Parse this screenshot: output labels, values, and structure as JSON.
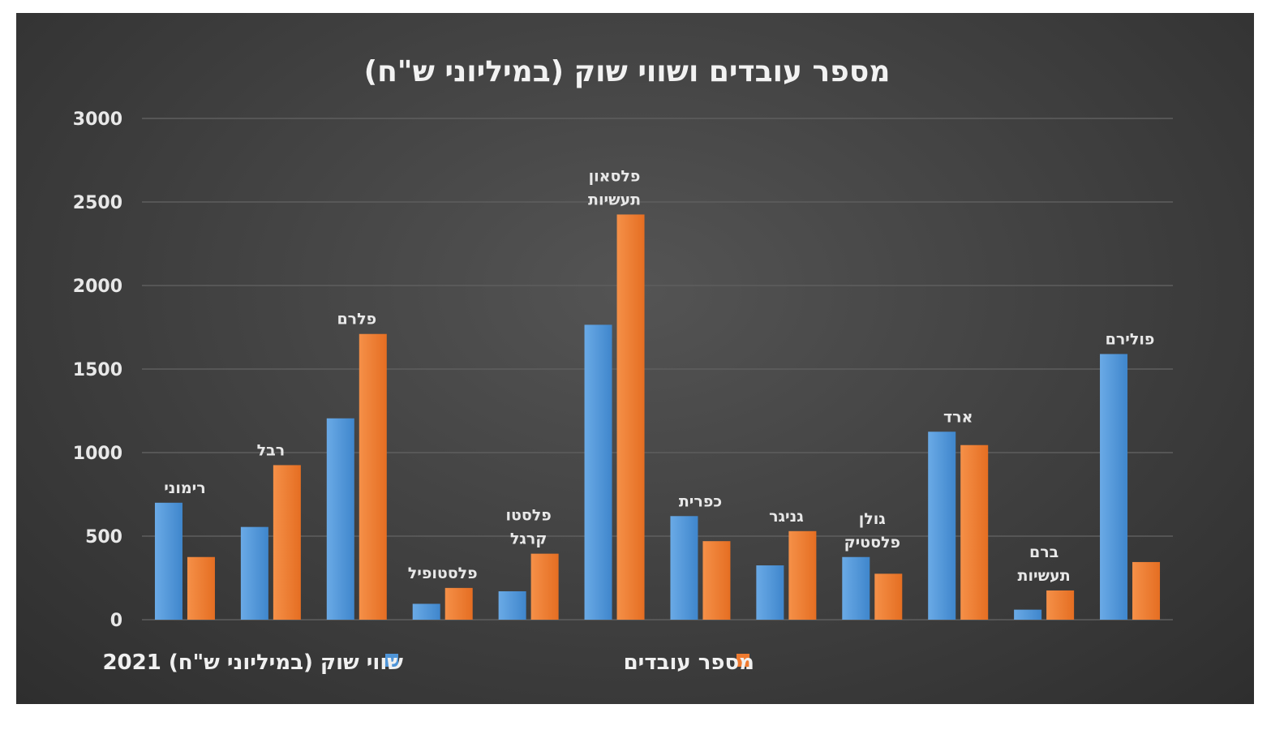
{
  "chart_data": {
    "type": "bar",
    "title": "מספר עובדים ושווי שוק (במיליוני ש\"ח)",
    "categories": [
      [
        "רימוני"
      ],
      [
        "רבל"
      ],
      [
        "פלרם"
      ],
      [
        "פלסטופיל"
      ],
      [
        "פלסטו",
        "קרגל"
      ],
      [
        "פלסאון",
        "תעשיות"
      ],
      [
        "כפרית"
      ],
      [
        "גניגר"
      ],
      [
        "גולן",
        "פלסטיק"
      ],
      [
        "ארד"
      ],
      [
        "ברם",
        "תעשיות"
      ],
      [
        "פולירם"
      ]
    ],
    "series": [
      {
        "name": "שווי שוק (במיליוני ש\"ח) 2021",
        "color": "#4f95d8",
        "values": [
          700,
          555,
          1205,
          95,
          170,
          1765,
          620,
          325,
          375,
          1125,
          60,
          1590
        ]
      },
      {
        "name": "מספר עובדים",
        "color": "#ee7a30",
        "values": [
          375,
          925,
          1710,
          190,
          395,
          2425,
          470,
          530,
          275,
          1045,
          175,
          345
        ]
      }
    ],
    "yticks": [
      0,
      500,
      1000,
      1500,
      2000,
      2500,
      3000
    ],
    "ylim": [
      0,
      3000
    ],
    "xlabel": "",
    "ylabel": "",
    "grid": true,
    "legend_position": "bottom"
  }
}
